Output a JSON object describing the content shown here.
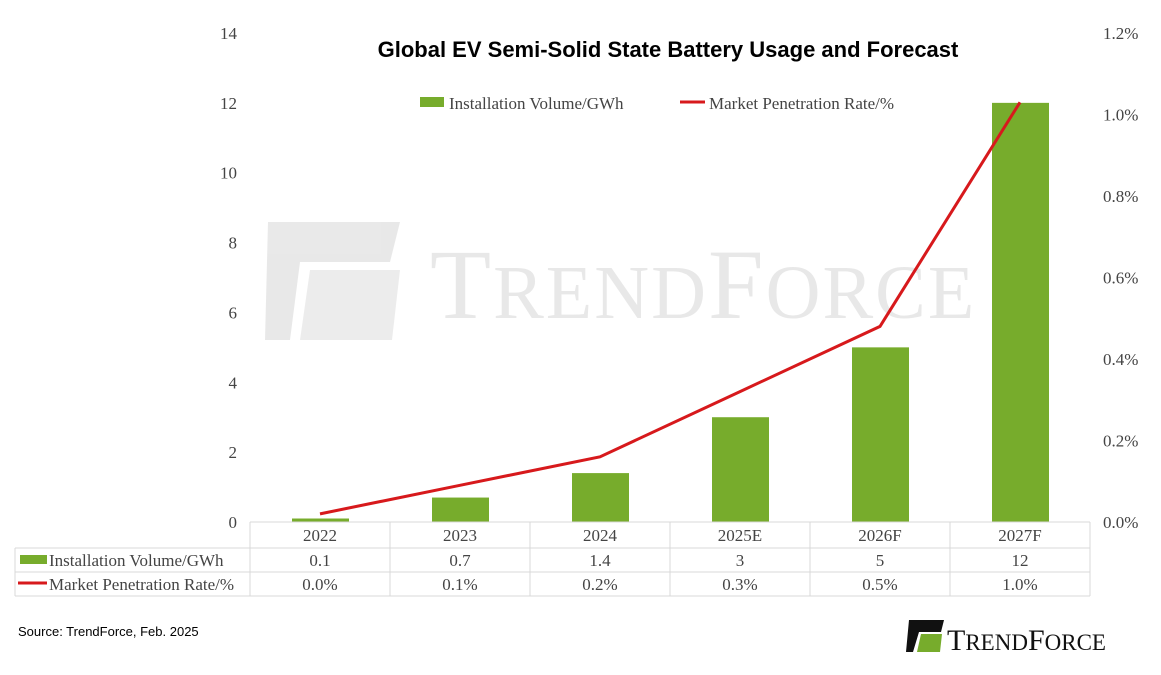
{
  "chart_data": {
    "type": "bar+line",
    "title": "Global EV Semi-Solid State Battery Usage and Forecast",
    "categories": [
      "2022",
      "2023",
      "2024",
      "2025E",
      "2026F",
      "2027F"
    ],
    "series": [
      {
        "name": "Installation Volume/GWh",
        "type": "bar",
        "axis": "left",
        "color": "#77AC2C",
        "values": [
          0.1,
          0.7,
          1.4,
          3,
          5,
          12
        ],
        "table_labels": [
          "0.1",
          "0.7",
          "1.4",
          "3",
          "5",
          "12"
        ]
      },
      {
        "name": "Market Penetration Rate/%",
        "type": "line",
        "axis": "right",
        "color": "#D7191C",
        "values": [
          0.02,
          0.09,
          0.16,
          0.32,
          0.48,
          1.03
        ],
        "table_labels": [
          "0.0%",
          "0.1%",
          "0.2%",
          "0.3%",
          "0.5%",
          "1.0%"
        ]
      }
    ],
    "left_axis": {
      "ylim": [
        0,
        14
      ],
      "ticks": [
        "0",
        "2",
        "4",
        "6",
        "8",
        "10",
        "12",
        "14"
      ]
    },
    "right_axis": {
      "ylim": [
        0,
        1.2
      ],
      "ticks": [
        "0.0%",
        "0.2%",
        "0.4%",
        "0.6%",
        "0.8%",
        "1.0%",
        "1.2%"
      ]
    },
    "grid": false,
    "legend": "top",
    "data_table": true
  },
  "source": "Source: TrendForce, Feb. 2025",
  "watermark": "TRENDFORCE",
  "logo": "TRENDFORCE"
}
